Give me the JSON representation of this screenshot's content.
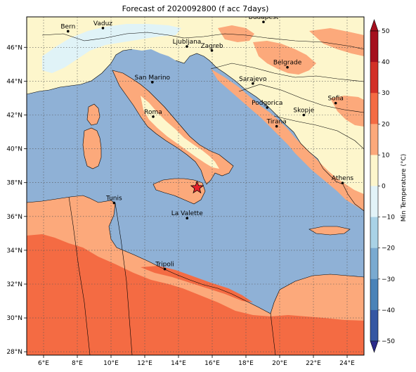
{
  "title": "Forecast of 2020092800 (f acc 7days)",
  "map": {
    "lon_ticks": [
      "6°E",
      "8°E",
      "10°E",
      "12°E",
      "14°E",
      "16°E",
      "18°E",
      "20°E",
      "22°E",
      "24°E"
    ],
    "lat_ticks": [
      "28°N",
      "30°N",
      "32°N",
      "34°N",
      "36°N",
      "38°N",
      "40°N",
      "42°N",
      "44°N",
      "46°N"
    ],
    "lon_range": [
      5,
      25
    ],
    "lat_range": [
      27.8,
      47.8
    ],
    "grid": true,
    "colors": {
      "sea": "#8fb1d6",
      "land_cool": "#fdf6cc",
      "land_mild": "#fca97b",
      "land_warm": "#f46b43",
      "cold_pale": "#e0f3f7",
      "border": "#000000"
    },
    "event_marker": {
      "shape": "star",
      "color": "#e8202a",
      "lon": 15.1,
      "lat": 37.7
    },
    "cities": [
      {
        "name": "Bern",
        "lon": 7.45,
        "lat": 46.95
      },
      {
        "name": "Vaduz",
        "lon": 9.52,
        "lat": 47.14
      },
      {
        "name": "Budapest",
        "lon": 19.04,
        "lat": 47.5
      },
      {
        "name": "Ljubljana",
        "lon": 14.5,
        "lat": 46.05
      },
      {
        "name": "Zagreb",
        "lon": 15.98,
        "lat": 45.81
      },
      {
        "name": "Belgrade",
        "lon": 20.46,
        "lat": 44.82
      },
      {
        "name": "San Marino",
        "lon": 12.45,
        "lat": 43.94
      },
      {
        "name": "Sarajevo",
        "lon": 18.41,
        "lat": 43.86
      },
      {
        "name": "Sofia",
        "lon": 23.32,
        "lat": 42.7
      },
      {
        "name": "Podgorica",
        "lon": 19.26,
        "lat": 42.44
      },
      {
        "name": "Skopje",
        "lon": 21.43,
        "lat": 42.0
      },
      {
        "name": "Roma",
        "lon": 12.5,
        "lat": 41.9
      },
      {
        "name": "Tirana",
        "lon": 19.82,
        "lat": 41.33
      },
      {
        "name": "Athens",
        "lon": 23.73,
        "lat": 37.98
      },
      {
        "name": "Tunis",
        "lon": 10.18,
        "lat": 36.8
      },
      {
        "name": "La Valette",
        "lon": 14.51,
        "lat": 35.9
      },
      {
        "name": "Tripoli",
        "lon": 13.19,
        "lat": 32.89
      }
    ]
  },
  "colorbar": {
    "label": "Min Temperature (°C)",
    "ticks": [
      "−50",
      "−40",
      "−30",
      "−20",
      "−10",
      "0",
      "10",
      "20",
      "30",
      "40",
      "50"
    ],
    "range": [
      -50,
      50
    ],
    "colors": [
      "#2a2a8a",
      "#3557a3",
      "#4a83b8",
      "#7aaad0",
      "#a9d2e6",
      "#e2f3f8",
      "#fdf6cc",
      "#fca97b",
      "#f46b43",
      "#d23027",
      "#a50f1e"
    ]
  }
}
